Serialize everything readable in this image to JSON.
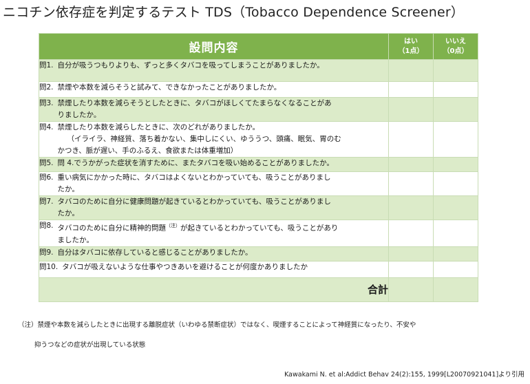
{
  "title": "ニコチン依存症を判定するテスト TDS（Tobacco Dependence Screener）",
  "table": {
    "header": {
      "main": "設問内容",
      "yes_label": "はい",
      "yes_points": "（1点）",
      "no_label": "いいえ",
      "no_points": "（0点）"
    },
    "questions": [
      {
        "num": "問1.",
        "lines": [
          "自分が吸うつもりよりも、ずっと多くタバコを吸ってしまうことがありましたか。"
        ]
      },
      {
        "num": "問2.",
        "lines": [
          "禁煙や本数を減らそうと試みて、できなかったことがありましたか。"
        ]
      },
      {
        "num": "問3.",
        "lines": [
          "禁煙したり本数を減らそうとしたときに、タバコがほしくてたまらなくなることがあ",
          "りましたか。"
        ]
      },
      {
        "num": "問4.",
        "lines": [
          "禁煙したり本数を減らしたときに、次のどれがありましたか。",
          "（イライラ、神経質、落ち着かない、集中しにくい、ゆううつ、頭痛、眠気、胃のむ",
          "かつき、脈が遅い、手のふるえ、食欲または体重増加）"
        ]
      },
      {
        "num": "問5.",
        "lines": [
          "問 4.でうかがった症状を消すために、またタバコを吸い始めることがありましたか。"
        ]
      },
      {
        "num": "問6.",
        "lines": [
          "重い病気にかかった時に、タバコはよくないとわかっていても、吸うことがありまし",
          "たか。"
        ]
      },
      {
        "num": "問7.",
        "lines": [
          "タバコのために自分に健康問題が起きているとわかっていても、吸うことがありまし",
          "たか。"
        ]
      },
      {
        "num": "問8.",
        "lines": [
          "タバコのために自分に精神的問題",
          "が起きているとわかっていても、吸うことがあり",
          "ましたか。"
        ],
        "note_mark": "（注）"
      },
      {
        "num": "問9.",
        "lines": [
          "自分はタバコに依存していると感じることがありましたか。"
        ]
      },
      {
        "num": "問10.",
        "lines": [
          "タバコが吸えないような仕事やつきあいを避けることが何度かありましたか"
        ]
      }
    ],
    "total_label": "合計"
  },
  "footnote": {
    "line1": "（注）禁煙や本数を減らしたときに出現する離脱症状（いわゆる禁断症状）ではなく、喫煙することによって神経質になったり、不安や",
    "line2": "抑うつなどの症状が出現している状態"
  },
  "citation": "Kawakami N. et al:Addict Behav 24(2):155, 1999[L20070921041]より引用",
  "colors": {
    "header_green": "#7fb24c",
    "row_shade": "#dcebc9",
    "border": "#c8dcb4"
  }
}
